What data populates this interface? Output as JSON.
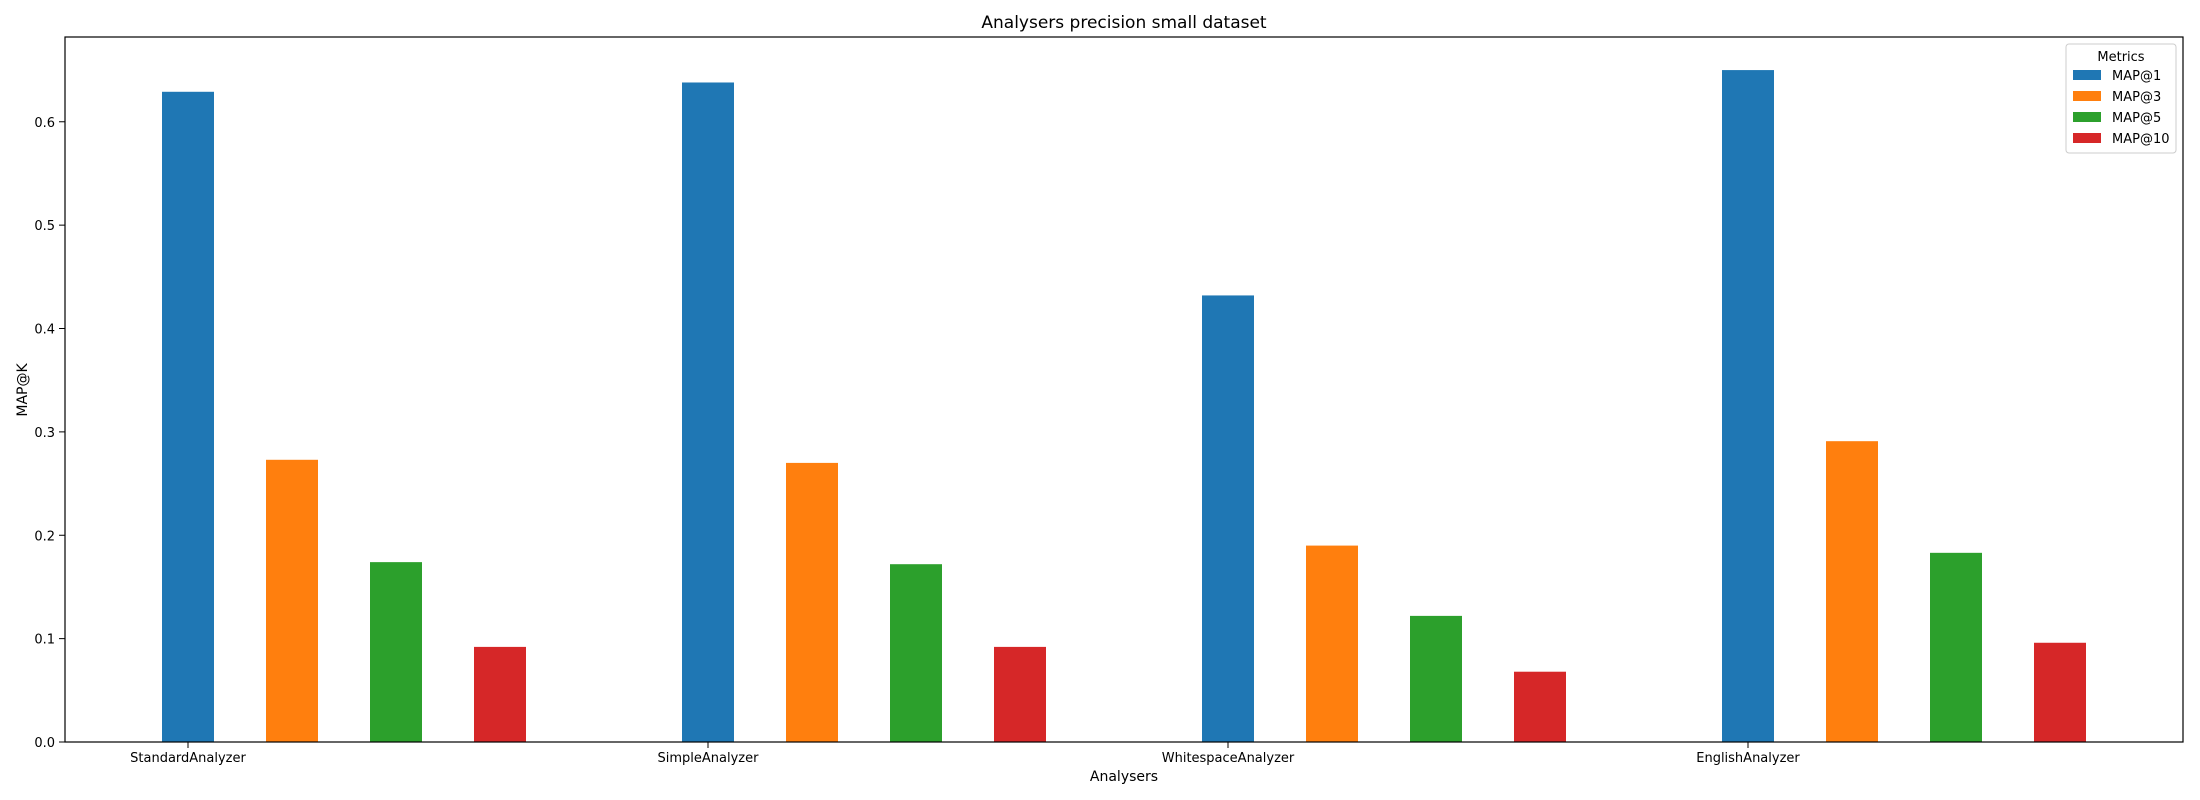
{
  "chart_data": {
    "type": "bar",
    "title": "Analysers precision small dataset",
    "xlabel": "Analysers",
    "ylabel": "MAP@K",
    "categories": [
      "StandardAnalyzer",
      "SimpleAnalyzer",
      "WhitespaceAnalyzer",
      "EnglishAnalyzer"
    ],
    "series": [
      {
        "name": "MAP@1",
        "color": "#1f77b4",
        "values": [
          0.629,
          0.638,
          0.432,
          0.65
        ]
      },
      {
        "name": "MAP@3",
        "color": "#ff7f0e",
        "values": [
          0.273,
          0.27,
          0.19,
          0.291
        ]
      },
      {
        "name": "MAP@5",
        "color": "#2ca02c",
        "values": [
          0.174,
          0.172,
          0.122,
          0.183
        ]
      },
      {
        "name": "MAP@10",
        "color": "#d62728",
        "values": [
          0.092,
          0.092,
          0.068,
          0.096
        ]
      }
    ],
    "ylim": [
      0,
      0.682
    ],
    "yticks": [
      0.0,
      0.1,
      0.2,
      0.3,
      0.4,
      0.5,
      0.6
    ],
    "ytick_labels": [
      "0.0",
      "0.1",
      "0.2",
      "0.3",
      "0.4",
      "0.5",
      "0.6"
    ],
    "legend": {
      "title": "Metrics",
      "placement": "top-right"
    },
    "grid": false
  }
}
